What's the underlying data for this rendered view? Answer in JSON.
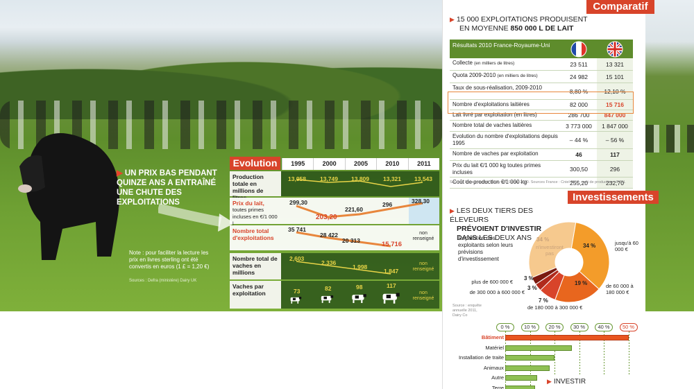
{
  "left": {
    "caption": "UN PRIX BAS PENDANT QUINZE ANS A ENTRAÎNÉ UNE CHUTE DES EXPLOITATIONS",
    "note": "Note : pour faciliter la lecture les prix en livres sterling ont été convertis en euros (1 £ = 1,20 €)",
    "source": "Sources : Defra (ministère) Dairy UK"
  },
  "evolution": {
    "title": "Evolution",
    "years": [
      "1995",
      "2000",
      "2005",
      "2010",
      "2011"
    ],
    "rows": {
      "production": {
        "label": "Production totale en millions de litres",
        "values": [
          "13,958",
          "13,749",
          "13,809",
          "13,321",
          "13,543"
        ]
      },
      "prix": {
        "label_red": "Prix du lait,",
        "label_rest": "toutes primes incluses en €/1 000 l",
        "values": [
          "299,30",
          "203,20",
          "221,60",
          "296",
          "328,30"
        ]
      },
      "exploitations": {
        "label": "Nombre total d'exploitations",
        "values": [
          "35 741",
          "28 422",
          "20 313",
          "15 716"
        ],
        "nonrens": "non renseigné"
      },
      "vaches": {
        "label": "Nombre total de vaches en millions",
        "values": [
          "2,603",
          "2,336",
          "1,998",
          "1,847"
        ],
        "nonrens": "non renseigné"
      },
      "vaches_par": {
        "label": "Vaches par exploitation",
        "values": [
          "73",
          "82",
          "98",
          "117"
        ],
        "nonrens": "non renseigné"
      }
    }
  },
  "comparatif": {
    "tag": "Comparatif",
    "heading_1": "15 000 EXPLOITATIONS PRODUISENT",
    "heading_2a": "EN MOYENNE",
    "heading_2b": "850 000 L DE LAIT",
    "table_header": "Résultats 2010 France-Royaume-Uni",
    "rows": [
      {
        "label": "Collecte",
        "small": "(en milliers de litres)",
        "fr": "23 511",
        "uk": "13 321"
      },
      {
        "label": "Quota 2009-2010",
        "small": "(en milliers de litres)",
        "fr": "24 982",
        "uk": "15 101"
      },
      {
        "label": "Taux de sous-réalisation, 2009-2010",
        "small": "",
        "fr": "8,80 %",
        "uk": "12,10 %"
      },
      {
        "label": "Nombre d'exploitations laitières",
        "small": "",
        "fr": "82 000",
        "uk": "15 716"
      },
      {
        "label": "Lait livré par exploitation (en litres)",
        "small": "",
        "fr": "286 700",
        "uk": "847 000"
      },
      {
        "label": "Nombre total de vaches laitières",
        "small": "",
        "fr": "3 773 000",
        "uk": "1 847 000"
      },
      {
        "label": "Evolution du nombre d'exploitations depuis 1995",
        "small": "",
        "fr": "– 44 %",
        "uk": "– 56 %"
      },
      {
        "label": "Nombre de vaches par exploitation",
        "small": "",
        "fr": "46",
        "uk": "117"
      },
      {
        "label": "Prix du lait €/1 000 kg toutes primes incluses",
        "small": "",
        "fr": "300,50",
        "uk": "296"
      },
      {
        "label": "Coût de production €/1 000 kg",
        "small": "",
        "fr": "255,20",
        "uk": "232,70"
      }
    ],
    "source": "Sources Royaume-Uni : Dairy UK, Defra, 2010. Sources France : Cniel 2010, coût de production : IFCN."
  },
  "investissements": {
    "tag": "Investissements",
    "heading_1": "LES DEUX TIERS DES ÉLEVEURS",
    "heading_2": "PRÉVOIENT D'INVESTIR",
    "heading_3": "DANS LES DEUX ANS",
    "sub": "Répartition des exploitants selon leurs prévisions d'investissement",
    "source": "Source : enquête annuelle 2011, Dairy Co",
    "slices": [
      {
        "pct": "34 %",
        "label": "n'investiront pas",
        "value": 34,
        "color": "#f6c98e"
      },
      {
        "pct": "34 %",
        "label": "jusqu'à 60 000 €",
        "value": 34,
        "color": "#f39c2a"
      },
      {
        "pct": "19 %",
        "label": "de 60 000 à 180 000 €",
        "value": 19,
        "color": "#e8661e"
      },
      {
        "pct": "7 %",
        "label": "de 180 000 à 300 000 €",
        "value": 7,
        "color": "#d8442a"
      },
      {
        "pct": "3 %",
        "label": "de 300 000 à 600 000 €",
        "value": 3,
        "color": "#b02a1c"
      },
      {
        "pct": "3 %",
        "label": "plus de 600 000 €",
        "value": 3,
        "color": "#7a1a10"
      }
    ]
  },
  "bar_chart": {
    "ticks": [
      "0 %",
      "10 %",
      "20 %",
      "30 %",
      "40 %",
      "50 %"
    ],
    "items": [
      {
        "label": "Bâtiment",
        "value": 50,
        "highlight": true
      },
      {
        "label": "Matériel",
        "value": 27
      },
      {
        "label": "Installation de traite",
        "value": 20
      },
      {
        "label": "Animaux",
        "value": 18
      },
      {
        "label": "Autre",
        "value": 13
      },
      {
        "label": "Terre",
        "value": 12
      }
    ],
    "footer": "INVESTIR"
  },
  "colors": {
    "accent": "#d8442a",
    "green": "#5e8c2c",
    "orange": "#e8863c"
  }
}
